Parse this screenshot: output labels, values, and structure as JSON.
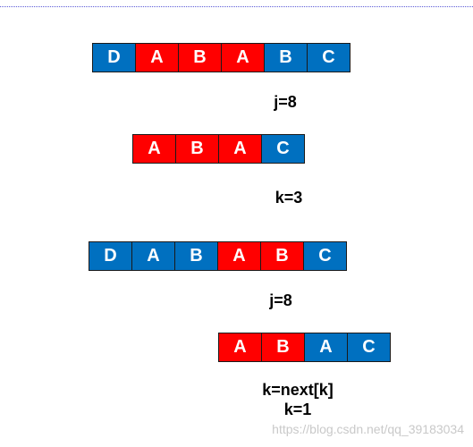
{
  "colors": {
    "blue": "#0070c0",
    "red": "#ff0000"
  },
  "rows": [
    {
      "cells": [
        {
          "text": "D",
          "color": "blue"
        },
        {
          "text": "A",
          "color": "red"
        },
        {
          "text": "B",
          "color": "red"
        },
        {
          "text": "A",
          "color": "red"
        },
        {
          "text": "B",
          "color": "blue"
        },
        {
          "text": "C",
          "color": "blue"
        }
      ]
    },
    {
      "cells": [
        {
          "text": "A",
          "color": "red"
        },
        {
          "text": "B",
          "color": "red"
        },
        {
          "text": "A",
          "color": "red"
        },
        {
          "text": "C",
          "color": "blue"
        }
      ]
    },
    {
      "cells": [
        {
          "text": "D",
          "color": "blue"
        },
        {
          "text": "A",
          "color": "blue"
        },
        {
          "text": "B",
          "color": "blue"
        },
        {
          "text": "A",
          "color": "red"
        },
        {
          "text": "B",
          "color": "red"
        },
        {
          "text": "C",
          "color": "blue"
        }
      ]
    },
    {
      "cells": [
        {
          "text": "A",
          "color": "red"
        },
        {
          "text": "B",
          "color": "red"
        },
        {
          "text": "A",
          "color": "blue"
        },
        {
          "text": "C",
          "color": "blue"
        }
      ]
    }
  ],
  "labels": {
    "j1": "j=8",
    "k1": "k=3",
    "j2": "j=8",
    "k2_line1": "k=next[k]",
    "k2_line2": "k=1"
  },
  "watermark": "https://blog.csdn.net/qq_39183034"
}
